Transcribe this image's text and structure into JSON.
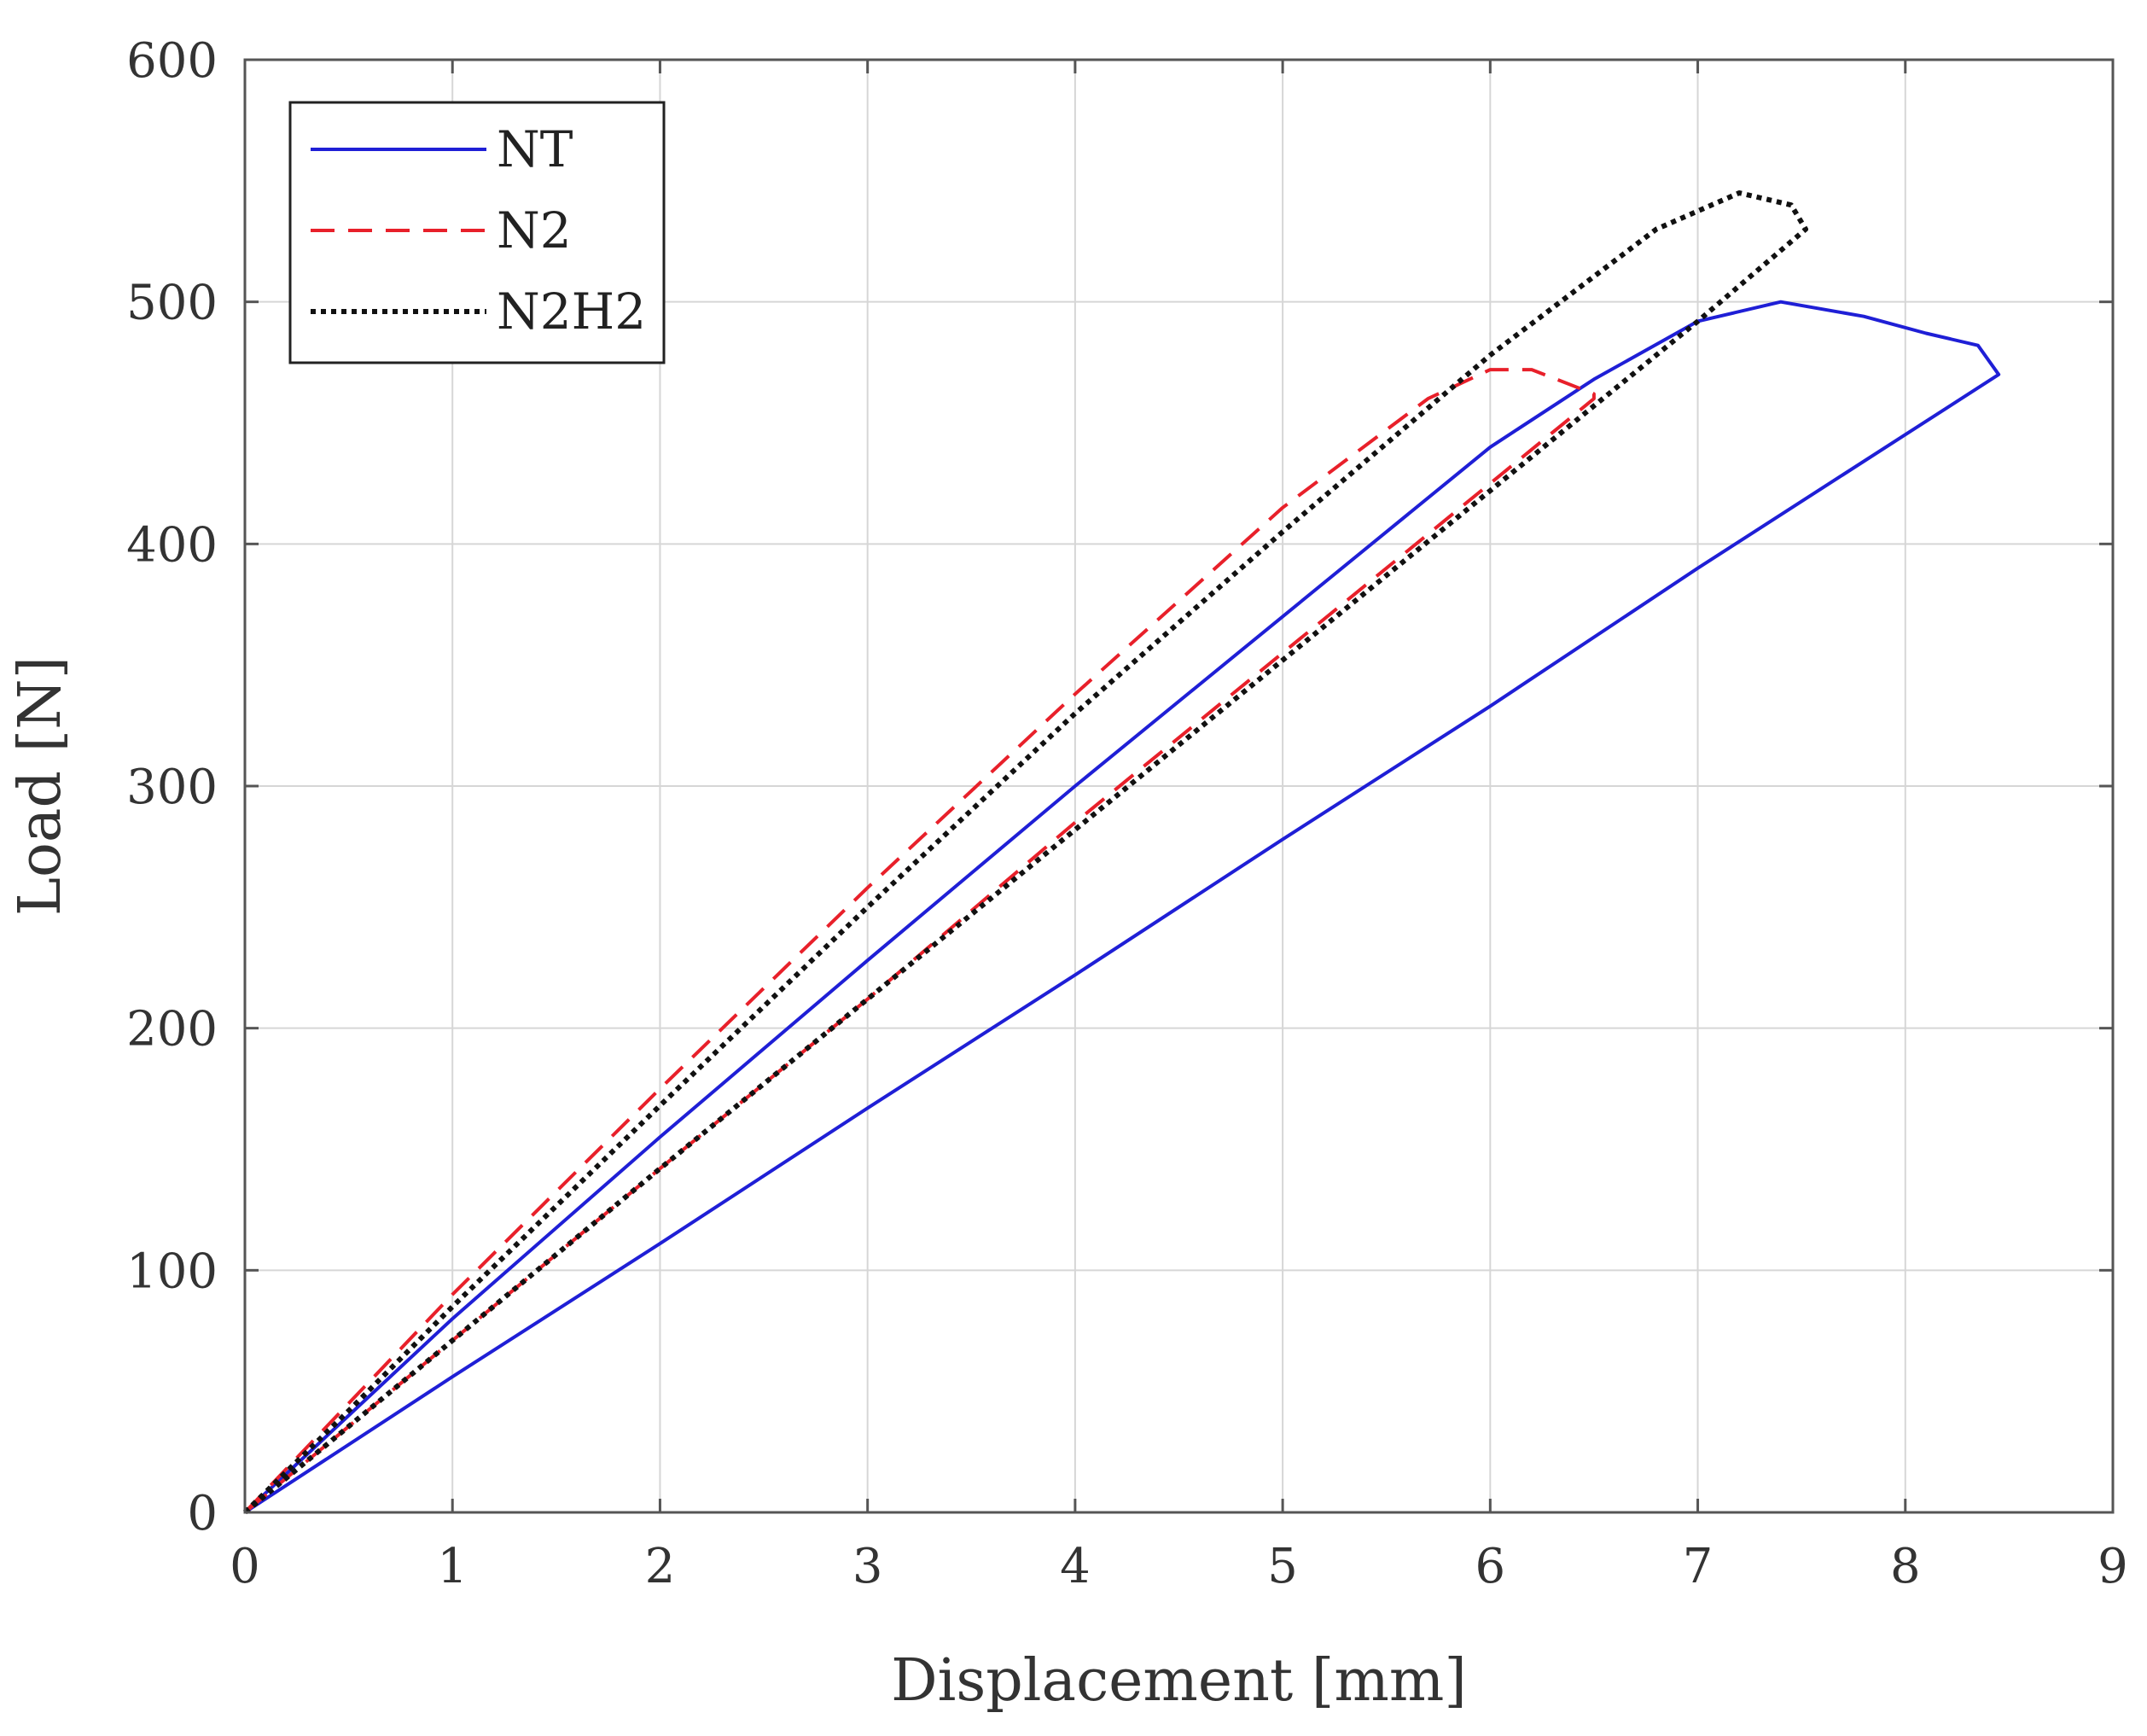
{
  "chart_data": {
    "type": "line",
    "title": "",
    "xlabel": "Displacement [mm]",
    "ylabel": "Load [N]",
    "xlim": [
      0,
      9
    ],
    "ylim": [
      0,
      600
    ],
    "xticks": [
      0,
      1,
      2,
      3,
      4,
      5,
      6,
      7,
      8,
      9
    ],
    "yticks": [
      0,
      100,
      200,
      300,
      400,
      500,
      600
    ],
    "grid": true,
    "legend_position": "top-left",
    "series": [
      {
        "name": "NT",
        "color": "#1f1fd6",
        "style": "solid",
        "x": [
          0,
          0.5,
          1,
          2,
          3,
          4,
          5,
          6,
          6.5,
          7,
          7.4,
          7.8,
          8.1,
          8.35,
          8.45,
          8.45,
          7,
          6,
          5,
          4,
          3,
          2,
          1,
          0
        ],
        "y": [
          0,
          40,
          80,
          155,
          228,
          300,
          370,
          440,
          468,
          492,
          500,
          494,
          487,
          482,
          470,
          470,
          390,
          333,
          278,
          222,
          167,
          111,
          56,
          0
        ]
      },
      {
        "name": "N2",
        "color": "#e8202a",
        "style": "dashed",
        "x": [
          0,
          0.5,
          1,
          2,
          3,
          4,
          5,
          5.7,
          6,
          6.2,
          6.5,
          6.5,
          6,
          5,
          4,
          3,
          2,
          1,
          0
        ],
        "y": [
          0,
          45,
          90,
          175,
          258,
          338,
          415,
          460,
          472,
          472,
          462,
          460,
          425,
          355,
          285,
          212,
          142,
          71,
          0
        ]
      },
      {
        "name": "N2H2",
        "color": "#111111",
        "style": "dotted",
        "x": [
          0,
          0.5,
          1,
          2,
          3,
          4,
          5,
          6,
          6.8,
          7.2,
          7.45,
          7.52,
          7.52,
          7,
          6.5,
          6,
          5,
          4,
          3,
          2,
          1,
          0
        ],
        "y": [
          0,
          42,
          85,
          168,
          250,
          330,
          405,
          478,
          530,
          545,
          540,
          530,
          530,
          492,
          457,
          422,
          352,
          282,
          212,
          142,
          71,
          0
        ]
      }
    ]
  }
}
